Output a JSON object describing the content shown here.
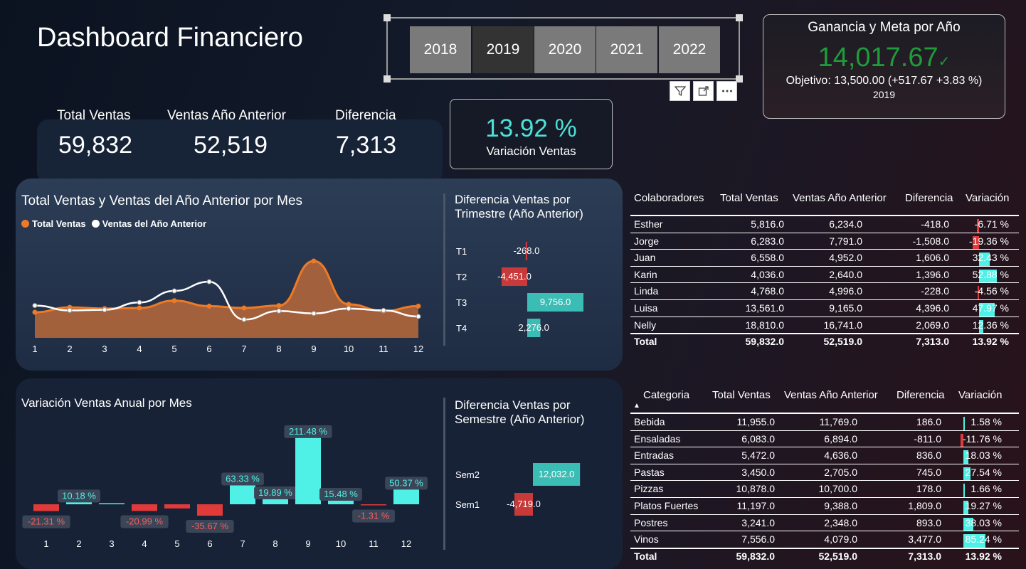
{
  "header": {
    "title": "Dashboard Financiero"
  },
  "slicer": {
    "years": [
      "2018",
      "2019",
      "2020",
      "2021",
      "2022"
    ],
    "selected": "2019",
    "tools": [
      "filter-icon",
      "focus-mode-icon",
      "more-options-icon"
    ]
  },
  "goal_card": {
    "title": "Ganancia y Meta por Año",
    "value": "14,017.67",
    "check": "✓",
    "objective": "Objetivo: 13,500.00 (+517.67 +3.83 %)",
    "year": "2019"
  },
  "kpis": [
    {
      "label": "Total Ventas",
      "value": "59,832"
    },
    {
      "label": "Ventas Año Anterior",
      "value": "52,519"
    },
    {
      "label": "Diferencia",
      "value": "7,313"
    }
  ],
  "variation_card": {
    "value": "13.92 %",
    "label": "Variación Ventas"
  },
  "colors": {
    "accent_teal": "#4de0da",
    "negative_red": "#e03a3a",
    "orange": "#ef7a25",
    "goal_green": "#1f9b3a"
  },
  "chart_data": [
    {
      "type": "area",
      "title": "Total Ventas y Ventas del Año Anterior por Mes",
      "legend_position": "top-left",
      "categories": [
        "1",
        "2",
        "3",
        "4",
        "5",
        "6",
        "7",
        "8",
        "9",
        "10",
        "11",
        "12"
      ],
      "series": [
        {
          "name": "Total Ventas",
          "color": "#ef7a25",
          "values": [
            4200,
            5000,
            4800,
            4900,
            6100,
            5200,
            4900,
            5300,
            12600,
            5500,
            4400,
            5200
          ]
        },
        {
          "name": "Ventas del Año Anterior",
          "color": "#ffffff",
          "values": [
            5300,
            4500,
            4600,
            5800,
            7700,
            9200,
            3000,
            4400,
            4000,
            4800,
            4500,
            3500
          ]
        }
      ],
      "ylim": [
        0,
        14000
      ]
    },
    {
      "type": "bar",
      "orientation": "horizontal",
      "title": "Diferencia Ventas por Trimestre (Año Anterior)",
      "categories": [
        "T1",
        "T2",
        "T3",
        "T4"
      ],
      "values": [
        -268.0,
        -4451.0,
        9756.0,
        2276.0
      ],
      "labels": [
        "-268.0",
        "-4,451.0",
        "9,756.0",
        "2,276.0"
      ]
    },
    {
      "type": "bar",
      "title": "Variación Ventas Anual por Mes",
      "categories": [
        "1",
        "2",
        "3",
        "4",
        "5",
        "6",
        "7",
        "8",
        "9",
        "10",
        "11",
        "12"
      ],
      "values": [
        -21.31,
        10.18,
        1.8,
        -20.99,
        -13.0,
        -35.67,
        63.33,
        19.89,
        211.48,
        15.48,
        -1.31,
        50.37
      ],
      "labels": [
        "-21.31 %",
        "10.18 %",
        "",
        "-20.99 %",
        "",
        "-35.67 %",
        "63.33 %",
        "19.89 %",
        "211.48 %",
        "15.48 %",
        "-1.31 %",
        "50.37 %"
      ]
    },
    {
      "type": "bar",
      "orientation": "horizontal",
      "title": "Diferencia Ventas por Semestre (Año Anterior)",
      "categories": [
        "Sem2",
        "Sem1"
      ],
      "values": [
        12032.0,
        -4719.0
      ],
      "labels": [
        "12,032.0",
        "-4,719.0"
      ]
    }
  ],
  "collab_table": {
    "headers": [
      "Colaboradores",
      "Total Ventas",
      "Ventas Año Anterior",
      "Diferencia",
      "Variación"
    ],
    "rows": [
      {
        "name": "Esther",
        "total": "5,816.0",
        "prev": "6,234.0",
        "diff": "-418.0",
        "var": "-6.71 %",
        "pct": -6.71
      },
      {
        "name": "Jorge",
        "total": "6,283.0",
        "prev": "7,791.0",
        "diff": "-1,508.0",
        "var": "-19.36 %",
        "pct": -19.36
      },
      {
        "name": "Juan",
        "total": "6,558.0",
        "prev": "4,952.0",
        "diff": "1,606.0",
        "var": "32.43 %",
        "pct": 32.43
      },
      {
        "name": "Karin",
        "total": "4,036.0",
        "prev": "2,640.0",
        "diff": "1,396.0",
        "var": "52.88 %",
        "pct": 52.88
      },
      {
        "name": "Linda",
        "total": "4,768.0",
        "prev": "4,996.0",
        "diff": "-228.0",
        "var": "-4.56 %",
        "pct": -4.56
      },
      {
        "name": "Luisa",
        "total": "13,561.0",
        "prev": "9,165.0",
        "diff": "4,396.0",
        "var": "47.97 %",
        "pct": 47.97
      },
      {
        "name": "Nelly",
        "total": "18,810.0",
        "prev": "16,741.0",
        "diff": "2,069.0",
        "var": "12.36 %",
        "pct": 12.36
      }
    ],
    "total": {
      "name": "Total",
      "total": "59,832.0",
      "prev": "52,519.0",
      "diff": "7,313.0",
      "var": "13.92 %"
    }
  },
  "category_table": {
    "headers": [
      "Categoria",
      "Total Ventas",
      "Ventas Año Anterior",
      "Diferencia",
      "Variación"
    ],
    "sort_icon": "▲",
    "rows": [
      {
        "name": "Bebida",
        "total": "11,955.0",
        "prev": "11,769.0",
        "diff": "186.0",
        "var": "1.58 %",
        "pct": 1.58
      },
      {
        "name": "Ensaladas",
        "total": "6,083.0",
        "prev": "6,894.0",
        "diff": "-811.0",
        "var": "-11.76 %",
        "pct": -11.76
      },
      {
        "name": "Entradas",
        "total": "5,472.0",
        "prev": "4,636.0",
        "diff": "836.0",
        "var": "18.03 %",
        "pct": 18.03
      },
      {
        "name": "Pastas",
        "total": "3,450.0",
        "prev": "2,705.0",
        "diff": "745.0",
        "var": "27.54 %",
        "pct": 27.54
      },
      {
        "name": "Pizzas",
        "total": "10,878.0",
        "prev": "10,700.0",
        "diff": "178.0",
        "var": "1.66 %",
        "pct": 1.66
      },
      {
        "name": "Platos Fuertes",
        "total": "11,197.0",
        "prev": "9,388.0",
        "diff": "1,809.0",
        "var": "19.27 %",
        "pct": 19.27
      },
      {
        "name": "Postres",
        "total": "3,241.0",
        "prev": "2,348.0",
        "diff": "893.0",
        "var": "38.03 %",
        "pct": 38.03
      },
      {
        "name": "Vinos",
        "total": "7,556.0",
        "prev": "4,079.0",
        "diff": "3,477.0",
        "var": "85.24 %",
        "pct": 85.24
      }
    ],
    "total": {
      "name": "Total",
      "total": "59,832.0",
      "prev": "52,519.0",
      "diff": "7,313.0",
      "var": "13.92 %"
    }
  }
}
